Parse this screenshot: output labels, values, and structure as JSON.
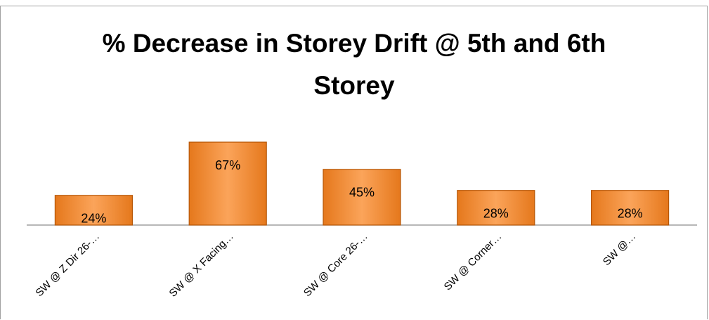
{
  "chart_data": {
    "type": "bar",
    "title": "% Decrease in Storey Drift @ 5th and 6th Storey",
    "categories": [
      "SW @ Z Dir 26-…",
      "SW @ X Facing…",
      "SW @ Core 26-…",
      "SW @ Corner…",
      "SW @…"
    ],
    "values": [
      24,
      67,
      45,
      28,
      28
    ],
    "value_labels": [
      "24%",
      "67%",
      "45%",
      "28%",
      "28%"
    ],
    "color": "#f79646"
  }
}
